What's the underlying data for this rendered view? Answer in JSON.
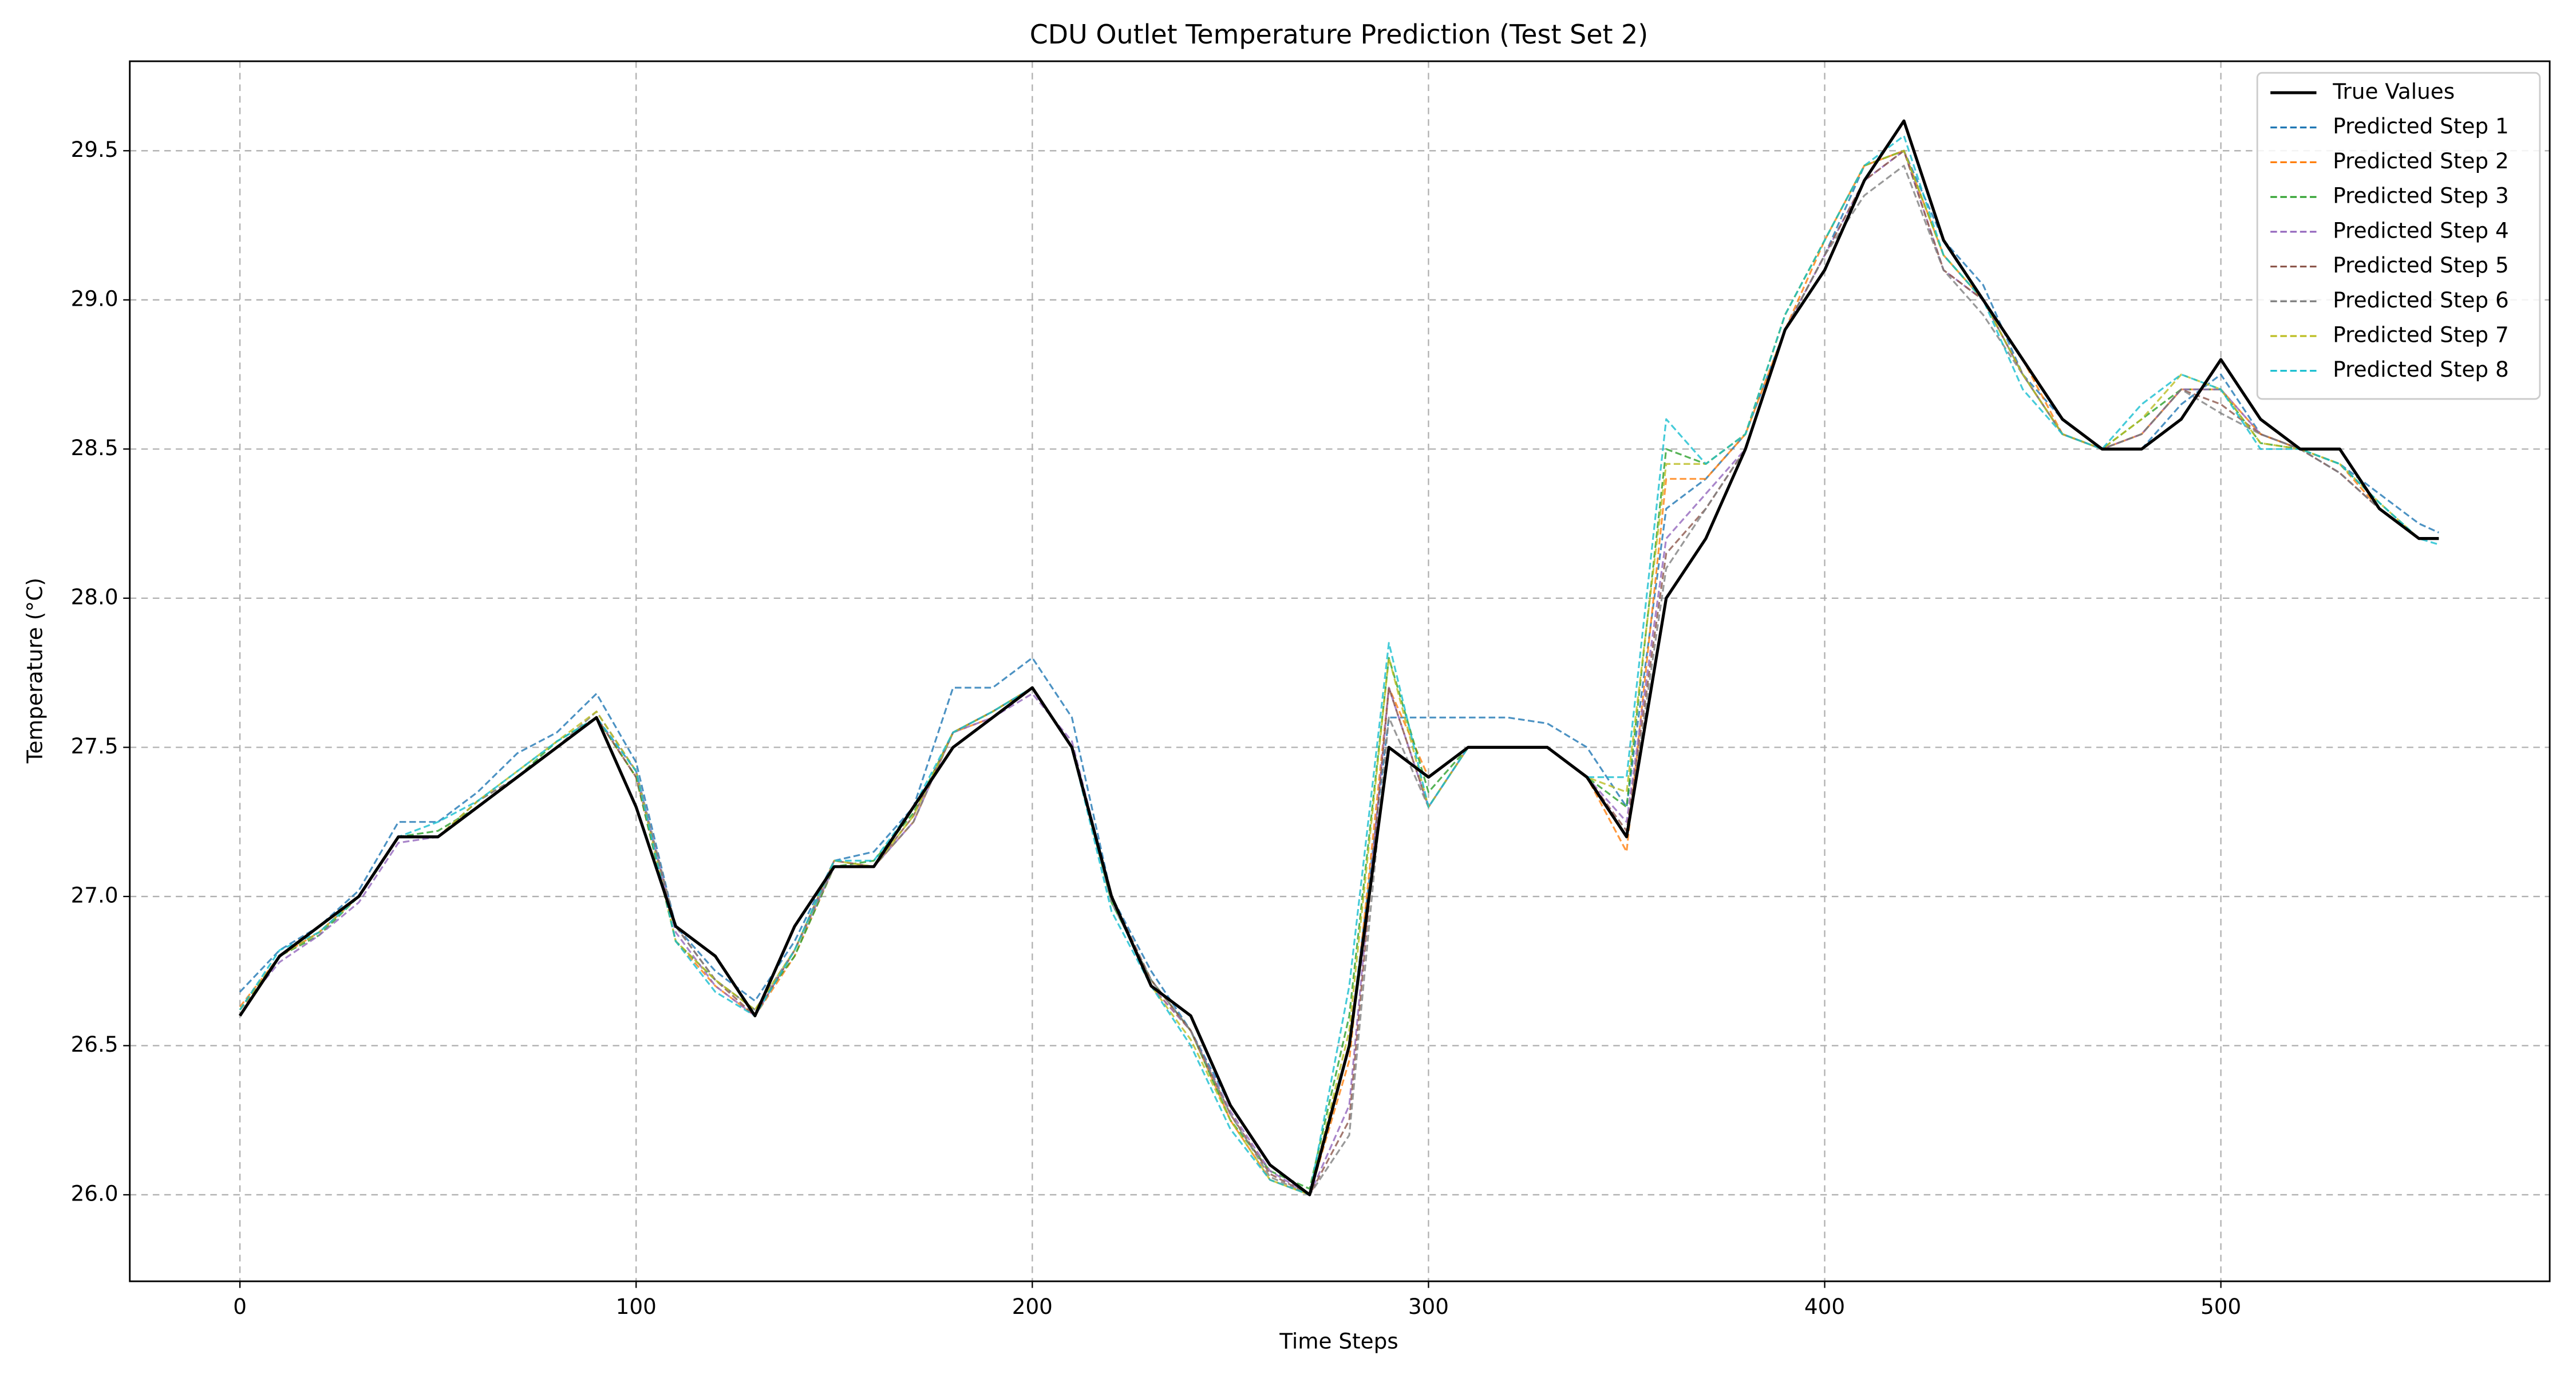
{
  "chart_data": {
    "type": "line",
    "title": "CDU Outlet Temperature Prediction (Test Set 2)",
    "x_label": "Time Steps",
    "y_label": "Temperature (°C)",
    "x": [
      0,
      10,
      20,
      30,
      40,
      50,
      60,
      70,
      80,
      90,
      100,
      110,
      120,
      130,
      140,
      150,
      160,
      170,
      180,
      190,
      200,
      210,
      220,
      230,
      240,
      250,
      260,
      270,
      280,
      290,
      300,
      310,
      320,
      330,
      340,
      350,
      360,
      370,
      380,
      390,
      400,
      410,
      420,
      430,
      440,
      450,
      460,
      470,
      480,
      490,
      500,
      510,
      520,
      530,
      540,
      550,
      555
    ],
    "series": [
      {
        "name": "True Values",
        "color": "#000000",
        "style": "solid",
        "values": [
          26.6,
          26.8,
          26.9,
          27.0,
          27.2,
          27.2,
          27.3,
          27.4,
          27.5,
          27.6,
          27.3,
          26.9,
          26.8,
          26.6,
          26.9,
          27.1,
          27.1,
          27.3,
          27.5,
          27.6,
          27.7,
          27.5,
          27.0,
          26.7,
          26.6,
          26.3,
          26.1,
          26.0,
          26.5,
          27.5,
          27.4,
          27.5,
          27.5,
          27.5,
          27.4,
          27.2,
          28.0,
          28.2,
          28.5,
          28.9,
          29.1,
          29.4,
          29.6,
          29.2,
          29.0,
          28.8,
          28.6,
          28.5,
          28.5,
          28.6,
          28.8,
          28.6,
          28.5,
          28.5,
          28.3,
          28.2,
          28.2
        ]
      },
      {
        "name": "Predicted Step 1",
        "color": "#1f77b4",
        "style": "dashed",
        "values": [
          26.68,
          26.82,
          26.9,
          27.02,
          27.25,
          27.25,
          27.35,
          27.48,
          27.55,
          27.68,
          27.45,
          26.9,
          26.75,
          26.65,
          26.85,
          27.12,
          27.15,
          27.3,
          27.7,
          27.7,
          27.8,
          27.6,
          27.0,
          26.75,
          26.55,
          26.3,
          26.1,
          26.0,
          26.5,
          27.6,
          27.6,
          27.6,
          27.6,
          27.58,
          27.5,
          27.3,
          28.3,
          28.4,
          28.55,
          28.9,
          29.15,
          29.45,
          29.5,
          29.2,
          29.05,
          28.75,
          28.6,
          28.5,
          28.5,
          28.65,
          28.75,
          28.55,
          28.5,
          28.45,
          28.35,
          28.25,
          28.22
        ]
      },
      {
        "name": "Predicted Step 2",
        "color": "#ff7f0e",
        "style": "dashed",
        "values": [
          26.63,
          26.8,
          26.88,
          27.0,
          27.2,
          27.2,
          27.3,
          27.4,
          27.5,
          27.6,
          27.4,
          26.85,
          26.7,
          26.6,
          26.8,
          27.1,
          27.1,
          27.25,
          27.55,
          27.6,
          27.7,
          27.5,
          27.0,
          26.7,
          26.55,
          26.25,
          26.05,
          26.0,
          26.45,
          27.7,
          27.4,
          27.5,
          27.5,
          27.5,
          27.4,
          27.15,
          28.4,
          28.4,
          28.55,
          28.9,
          29.2,
          29.45,
          29.5,
          29.15,
          29.0,
          28.8,
          28.55,
          28.5,
          28.55,
          28.7,
          28.7,
          28.55,
          28.5,
          28.45,
          28.3,
          28.2,
          28.2
        ]
      },
      {
        "name": "Predicted Step 3",
        "color": "#2ca02c",
        "style": "dashed",
        "values": [
          26.62,
          26.8,
          26.87,
          27.0,
          27.2,
          27.22,
          27.3,
          27.4,
          27.52,
          27.6,
          27.4,
          26.85,
          26.72,
          26.62,
          26.8,
          27.1,
          27.12,
          27.28,
          27.55,
          27.62,
          27.7,
          27.5,
          26.98,
          26.72,
          26.55,
          26.25,
          26.08,
          26.02,
          26.6,
          27.8,
          27.35,
          27.5,
          27.5,
          27.5,
          27.4,
          27.3,
          28.5,
          28.45,
          28.55,
          28.95,
          29.2,
          29.45,
          29.5,
          29.15,
          29.0,
          28.75,
          28.55,
          28.5,
          28.6,
          28.7,
          28.7,
          28.52,
          28.5,
          28.45,
          28.32,
          28.2,
          28.2
        ]
      },
      {
        "name": "Predicted Step 4",
        "color": "#9467bd",
        "style": "dashed",
        "values": [
          26.62,
          26.78,
          26.87,
          26.98,
          27.18,
          27.2,
          27.3,
          27.4,
          27.5,
          27.6,
          27.42,
          26.88,
          26.7,
          26.6,
          26.82,
          27.1,
          27.1,
          27.25,
          27.55,
          27.6,
          27.68,
          27.52,
          27.0,
          26.7,
          26.55,
          26.28,
          26.08,
          26.0,
          26.3,
          27.7,
          27.3,
          27.5,
          27.5,
          27.5,
          27.4,
          27.25,
          28.2,
          28.35,
          28.5,
          28.9,
          29.15,
          29.4,
          29.5,
          29.1,
          29.0,
          28.75,
          28.55,
          28.5,
          28.55,
          28.7,
          28.7,
          28.55,
          28.5,
          28.42,
          28.3,
          28.2,
          28.2
        ]
      },
      {
        "name": "Predicted Step 5",
        "color": "#8c564b",
        "style": "dashed",
        "values": [
          26.62,
          26.8,
          26.88,
          27.0,
          27.2,
          27.2,
          27.32,
          27.4,
          27.5,
          27.6,
          27.4,
          26.9,
          26.72,
          26.6,
          26.82,
          27.12,
          27.1,
          27.27,
          27.55,
          27.62,
          27.7,
          27.5,
          27.0,
          26.72,
          26.55,
          26.27,
          26.07,
          26.0,
          26.25,
          27.7,
          27.3,
          27.5,
          27.5,
          27.5,
          27.4,
          27.22,
          28.15,
          28.3,
          28.5,
          28.9,
          29.15,
          29.4,
          29.5,
          29.1,
          29.0,
          28.75,
          28.55,
          28.5,
          28.55,
          28.7,
          28.65,
          28.55,
          28.5,
          28.42,
          28.3,
          28.2,
          28.2
        ]
      },
      {
        "name": "Predicted Step 6",
        "color": "#7f7f7f",
        "style": "dashed",
        "values": [
          26.62,
          26.8,
          26.88,
          27.0,
          27.2,
          27.2,
          27.32,
          27.4,
          27.5,
          27.62,
          27.42,
          26.9,
          26.72,
          26.62,
          26.82,
          27.1,
          27.1,
          27.25,
          27.55,
          27.62,
          27.7,
          27.5,
          26.98,
          26.72,
          26.55,
          26.27,
          26.06,
          26.0,
          26.2,
          27.6,
          27.3,
          27.5,
          27.5,
          27.5,
          27.4,
          27.2,
          28.1,
          28.3,
          28.5,
          28.9,
          29.15,
          29.35,
          29.45,
          29.1,
          28.95,
          28.75,
          28.55,
          28.5,
          28.55,
          28.7,
          28.62,
          28.55,
          28.5,
          28.42,
          28.3,
          28.2,
          28.2
        ]
      },
      {
        "name": "Predicted Step 7",
        "color": "#bcbd22",
        "style": "dashed",
        "values": [
          26.62,
          26.8,
          26.88,
          27.0,
          27.2,
          27.2,
          27.32,
          27.42,
          27.52,
          27.62,
          27.42,
          26.85,
          26.72,
          26.62,
          26.82,
          27.12,
          27.1,
          27.27,
          27.55,
          27.62,
          27.7,
          27.5,
          27.0,
          26.7,
          26.52,
          26.25,
          26.05,
          26.0,
          26.55,
          27.8,
          27.3,
          27.5,
          27.5,
          27.5,
          27.4,
          27.35,
          28.45,
          28.45,
          28.55,
          28.95,
          29.2,
          29.45,
          29.5,
          29.15,
          29.0,
          28.75,
          28.55,
          28.5,
          28.6,
          28.75,
          28.7,
          28.52,
          28.5,
          28.45,
          28.32,
          28.2,
          28.2
        ]
      },
      {
        "name": "Predicted Step 8",
        "color": "#17becf",
        "style": "dashed",
        "values": [
          26.62,
          26.82,
          26.88,
          27.0,
          27.2,
          27.25,
          27.32,
          27.42,
          27.52,
          27.6,
          27.42,
          26.85,
          26.68,
          26.6,
          26.82,
          27.12,
          27.12,
          27.3,
          27.55,
          27.62,
          27.7,
          27.5,
          26.95,
          26.7,
          26.5,
          26.22,
          26.05,
          26.0,
          26.7,
          27.85,
          27.3,
          27.5,
          27.5,
          27.5,
          27.4,
          27.4,
          28.6,
          28.45,
          28.55,
          28.95,
          29.2,
          29.45,
          29.55,
          29.15,
          29.0,
          28.7,
          28.55,
          28.5,
          28.65,
          28.75,
          28.7,
          28.5,
          28.5,
          28.45,
          28.32,
          28.2,
          28.18
        ]
      }
    ],
    "xlim": [
      -27.8,
      583
    ],
    "ylim": [
      25.71,
      29.8
    ],
    "xticks": [
      0,
      100,
      200,
      300,
      400,
      500
    ],
    "yticks": [
      {
        "value": 26,
        "label": "26.0"
      },
      26.5,
      {
        "value": 27,
        "label": "27.0"
      },
      27.5,
      {
        "value": 28,
        "label": "28.0"
      },
      28.5,
      {
        "value": 29,
        "label": "29.0"
      },
      29.5
    ],
    "grid": true,
    "legend": "upper right"
  }
}
